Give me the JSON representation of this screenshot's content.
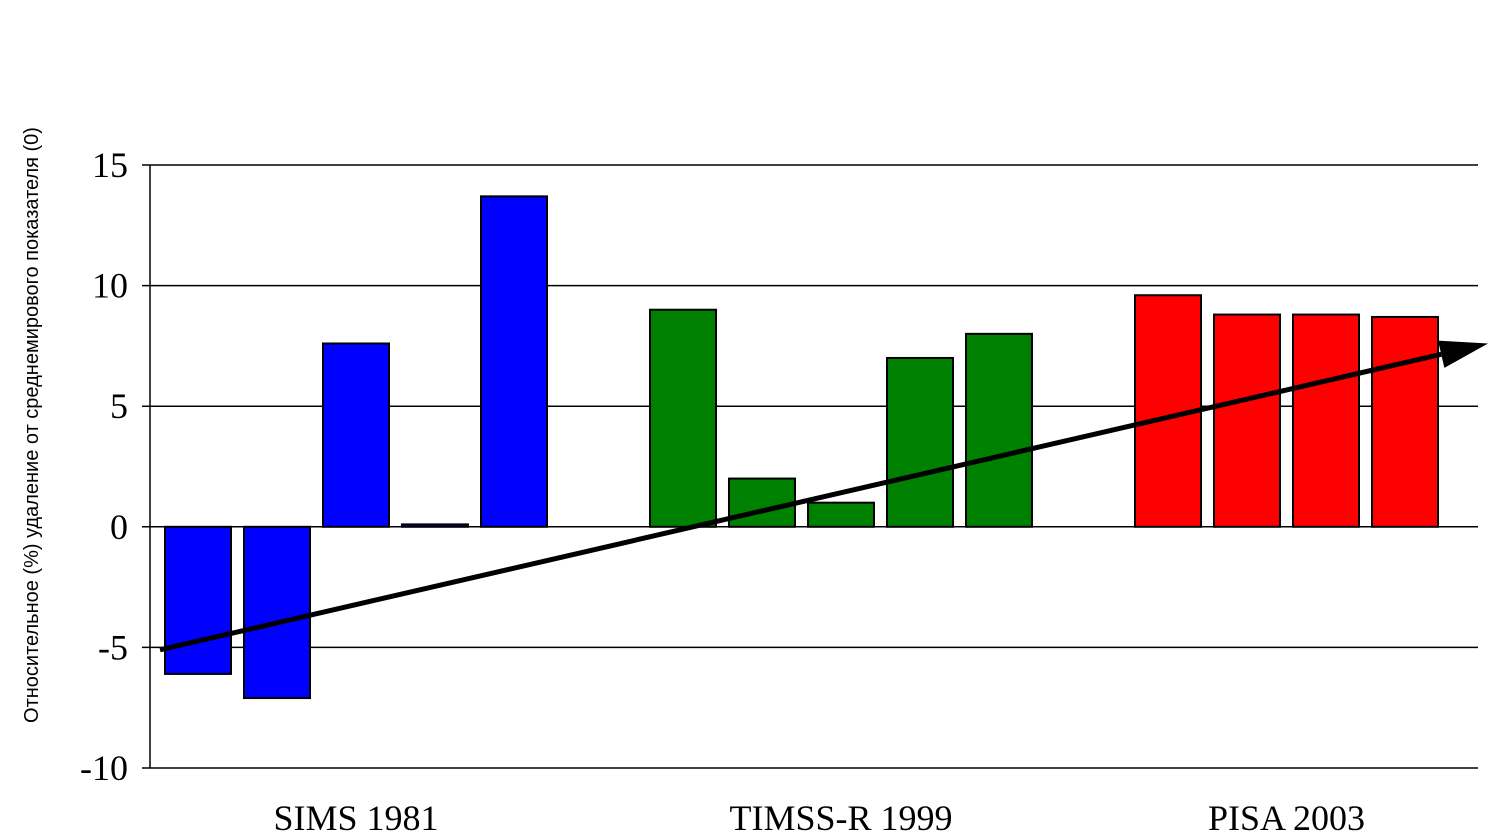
{
  "chart_data": {
    "type": "bar",
    "ylabel": "Относительное  (%) удаление от среднемирового показателя (0)",
    "xlabel": "",
    "ylim": [
      -10,
      15
    ],
    "yticks": [
      15,
      10,
      5,
      0,
      -5,
      -10
    ],
    "grid": true,
    "legend": "none",
    "groups": [
      {
        "label": "SIMS 1981",
        "color": "#0000ff",
        "values": [
          -6.1,
          -7.1,
          7.6,
          0.1,
          13.7
        ]
      },
      {
        "label": "TIMSS-R 1999",
        "color": "#008000",
        "values": [
          9.0,
          2.0,
          1.0,
          7.0,
          8.0
        ]
      },
      {
        "label": "PISA 2003",
        "color": "#ff0000",
        "values": [
          9.6,
          8.8,
          8.8,
          8.7
        ]
      }
    ],
    "trend_arrow": {
      "from": -5.1,
      "to": 7.6
    }
  }
}
